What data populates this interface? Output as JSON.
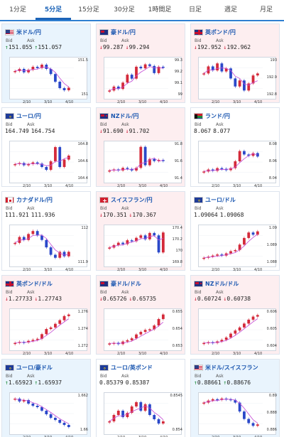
{
  "tabs": [
    "1分足",
    "5分足",
    "15分足",
    "30分足",
    "1時間足",
    "日足",
    "週足",
    "月足"
  ],
  "active_tab": 1,
  "labels": {
    "bid": "Bid",
    "ask": "Ask"
  },
  "colors": {
    "up": "#1e8b3a",
    "down": "#d0213a",
    "ma": "#c54bd6",
    "candle_up": "#d42a3a",
    "candle_down": "#2a48c9"
  },
  "cards": [
    {
      "title": "米ドル/円",
      "flag": "us",
      "dir": "up",
      "bid": "151.055",
      "ask": "151.057",
      "y_ticks": [
        "151.5",
        "151"
      ],
      "x_ticks": [
        "2/10",
        "3/10",
        "4/10"
      ],
      "chart_data": {
        "type": "candlestick",
        "series": [
          151.45,
          151.5,
          151.42,
          151.48,
          151.55,
          151.52,
          151.6,
          151.5,
          151.38,
          151.2,
          151.05,
          151.0,
          151.06
        ],
        "ylim": [
          150.9,
          151.7
        ]
      }
    },
    {
      "title": "豪ドル/円",
      "flag": "au",
      "dir": "down",
      "bid": "99.287",
      "ask": "99.294",
      "y_ticks": [
        "99.3",
        "99.2",
        "99.1",
        "99"
      ],
      "x_ticks": [
        "2/10",
        "3/10",
        "4/10"
      ],
      "chart_data": {
        "type": "candlestick",
        "series": [
          99.0,
          99.05,
          99.02,
          99.1,
          99.2,
          99.15,
          99.3,
          99.28,
          99.33,
          99.31,
          99.22,
          99.3,
          99.29
        ],
        "ylim": [
          98.95,
          99.38
        ]
      }
    },
    {
      "title": "英ポンド/円",
      "flag": "uk",
      "dir": "down",
      "bid": "192.952",
      "ask": "192.962",
      "y_ticks": [
        "193",
        "192.9",
        "192.8"
      ],
      "x_ticks": [
        "2/10",
        "3/10",
        "4/10"
      ],
      "chart_data": {
        "type": "candlestick",
        "series": [
          192.95,
          193.02,
          192.98,
          193.05,
          192.97,
          193.0,
          192.9,
          192.82,
          192.88,
          192.78,
          192.85,
          192.93,
          192.95
        ],
        "ylim": [
          192.74,
          193.08
        ]
      }
    },
    {
      "title": "ユーロ/円",
      "flag": "eu",
      "dir": "flat",
      "bid": "164.749",
      "ask": "164.754",
      "y_ticks": [
        "164.8",
        "164.6",
        "164.4"
      ],
      "x_ticks": [
        "2/10",
        "3/10",
        "4/10"
      ],
      "chart_data": {
        "type": "candlestick",
        "series": [
          164.6,
          164.62,
          164.58,
          164.6,
          164.63,
          164.61,
          164.55,
          164.5,
          164.65,
          164.9,
          164.55,
          164.68,
          164.75
        ],
        "ylim": [
          164.35,
          164.95
        ]
      }
    },
    {
      "title": "NZドル/円",
      "flag": "nz",
      "dir": "down",
      "bid": "91.690",
      "ask": "91.702",
      "y_ticks": [
        "91.8",
        "91.6",
        "91.4"
      ],
      "x_ticks": [
        "2/10",
        "3/10",
        "4/10"
      ],
      "chart_data": {
        "type": "candlestick",
        "series": [
          91.5,
          91.52,
          91.5,
          91.55,
          91.53,
          91.5,
          91.55,
          91.95,
          91.6,
          91.72,
          91.68,
          91.7,
          91.69
        ],
        "ylim": [
          91.35,
          92.0
        ]
      }
    },
    {
      "title": "ランド/円",
      "flag": "za",
      "dir": "flat",
      "bid": "8.067",
      "ask": "8.077",
      "y_ticks": [
        "8.08",
        "8.06",
        "8.04"
      ],
      "x_ticks": [
        "2/10",
        "3/10",
        "4/10"
      ],
      "chart_data": {
        "type": "candlestick",
        "series": [
          8.045,
          8.048,
          8.046,
          8.05,
          8.049,
          8.047,
          8.05,
          8.06,
          8.075,
          8.07,
          8.068,
          8.072,
          8.067
        ],
        "ylim": [
          8.035,
          8.085
        ]
      }
    },
    {
      "title": "カナダドル/円",
      "flag": "ca",
      "dir": "flat",
      "bid": "111.921",
      "ask": "111.936",
      "y_ticks": [
        "112",
        "111.9"
      ],
      "x_ticks": [
        "2/10",
        "3/10",
        "4/10"
      ],
      "chart_data": {
        "type": "candlestick",
        "series": [
          111.98,
          112.02,
          112.0,
          112.04,
          112.06,
          112.03,
          112.0,
          111.95,
          111.9,
          111.88,
          111.92,
          111.89,
          111.92
        ],
        "ylim": [
          111.85,
          112.08
        ]
      }
    },
    {
      "title": "スイスフラン/円",
      "flag": "ch",
      "dir": "down",
      "bid": "170.351",
      "ask": "170.367",
      "y_ticks": [
        "170.4",
        "170.2",
        "170",
        "169.8"
      ],
      "x_ticks": [
        "2/10",
        "3/10",
        "4/10"
      ],
      "chart_data": {
        "type": "candlestick",
        "series": [
          170.05,
          170.1,
          170.15,
          170.12,
          170.2,
          170.18,
          170.25,
          170.3,
          170.22,
          170.35,
          170.3,
          169.95,
          170.36
        ],
        "ylim": [
          169.75,
          170.45
        ]
      }
    },
    {
      "title": "ユーロ/ドル",
      "flag": "eu",
      "dir": "flat",
      "bid": "1.09064",
      "ask": "1.09068",
      "y_ticks": [
        "1.09",
        "1.089",
        "1.088"
      ],
      "x_ticks": [
        "2/10",
        "3/10",
        "4/10"
      ],
      "chart_data": {
        "type": "candlestick",
        "series": [
          1.0882,
          1.0883,
          1.0884,
          1.0885,
          1.0884,
          1.0886,
          1.0888,
          1.0889,
          1.0894,
          1.09,
          1.0905,
          1.0903,
          1.0906
        ],
        "ylim": [
          1.0878,
          1.0909
        ]
      }
    },
    {
      "title": "英ポンド/ドル",
      "flag": "uk",
      "dir": "down",
      "bid": "1.27733",
      "ask": "1.27743",
      "y_ticks": [
        "1.276",
        "1.274",
        "1.272"
      ],
      "x_ticks": [
        "2/10",
        "3/10",
        "4/10"
      ],
      "chart_data": {
        "type": "candlestick",
        "series": [
          1.2718,
          1.272,
          1.2719,
          1.2722,
          1.2724,
          1.2726,
          1.2735,
          1.2745,
          1.2748,
          1.2755,
          1.2762,
          1.277,
          1.2773
        ],
        "ylim": [
          1.2712,
          1.2778
        ]
      }
    },
    {
      "title": "豪ドル/ドル",
      "flag": "au",
      "dir": "down",
      "bid": "0.65726",
      "ask": "0.65735",
      "y_ticks": [
        "0.655",
        "0.654",
        "0.653"
      ],
      "x_ticks": [
        "2/10",
        "3/10",
        "4/10"
      ],
      "chart_data": {
        "type": "candlestick",
        "series": [
          0.6528,
          0.6529,
          0.6527,
          0.6531,
          0.6533,
          0.6536,
          0.6542,
          0.6546,
          0.6549,
          0.655,
          0.6556,
          0.6566,
          0.6573
        ],
        "ylim": [
          0.6524,
          0.6577
        ]
      }
    },
    {
      "title": "NZドル/ドル",
      "flag": "nz",
      "dir": "down",
      "bid": "0.60724",
      "ask": "0.60738",
      "y_ticks": [
        "0.606",
        "0.605",
        "0.604"
      ],
      "x_ticks": [
        "2/10",
        "3/10",
        "4/10"
      ],
      "chart_data": {
        "type": "candlestick",
        "series": [
          0.6036,
          0.6037,
          0.6036,
          0.6038,
          0.604,
          0.6043,
          0.6048,
          0.6052,
          0.6056,
          0.6061,
          0.6066,
          0.607,
          0.6072
        ],
        "ylim": [
          0.6032,
          0.6076
        ]
      }
    },
    {
      "title": "ユーロ/豪ドル",
      "flag": "eu",
      "dir": "up",
      "bid": "1.65923",
      "ask": "1.65937",
      "y_ticks": [
        "1.662",
        "1.66"
      ],
      "x_ticks": [
        "2/10",
        "3/10",
        "4/10"
      ],
      "chart_data": {
        "type": "candlestick",
        "series": [
          1.6632,
          1.6628,
          1.663,
          1.6625,
          1.6622,
          1.662,
          1.6615,
          1.661,
          1.6605,
          1.6602,
          1.6598,
          1.6595,
          1.6592
        ],
        "ylim": [
          1.6588,
          1.6636
        ]
      }
    },
    {
      "title": "ユーロ/英ポンド",
      "flag": "eu",
      "dir": "flat",
      "bid": "0.85379",
      "ask": "0.85387",
      "y_ticks": [
        "0.8545",
        "0.854"
      ],
      "x_ticks": [
        "2/10",
        "3/10",
        "4/10"
      ],
      "chart_data": {
        "type": "candlestick",
        "series": [
          0.8538,
          0.8541,
          0.8543,
          0.854,
          0.8542,
          0.8545,
          0.8547,
          0.8543,
          0.8546,
          0.8541,
          0.8539,
          0.8537,
          0.8538
        ],
        "ylim": [
          0.8534,
          0.855
        ]
      }
    },
    {
      "title": "米ドル/スイスフラン",
      "flag": "us",
      "dir": "up",
      "bid": "0.88661",
      "ask": "0.88676",
      "y_ticks": [
        "0.89",
        "0.888",
        "0.886"
      ],
      "x_ticks": [
        "2/10",
        "3/10",
        "4/10"
      ],
      "chart_data": {
        "type": "candlestick",
        "series": [
          0.8898,
          0.8901,
          0.8903,
          0.8902,
          0.8904,
          0.8903,
          0.8902,
          0.8898,
          0.8885,
          0.8874,
          0.8868,
          0.8864,
          0.8866
        ],
        "ylim": [
          0.8858,
          0.8908
        ]
      }
    }
  ]
}
